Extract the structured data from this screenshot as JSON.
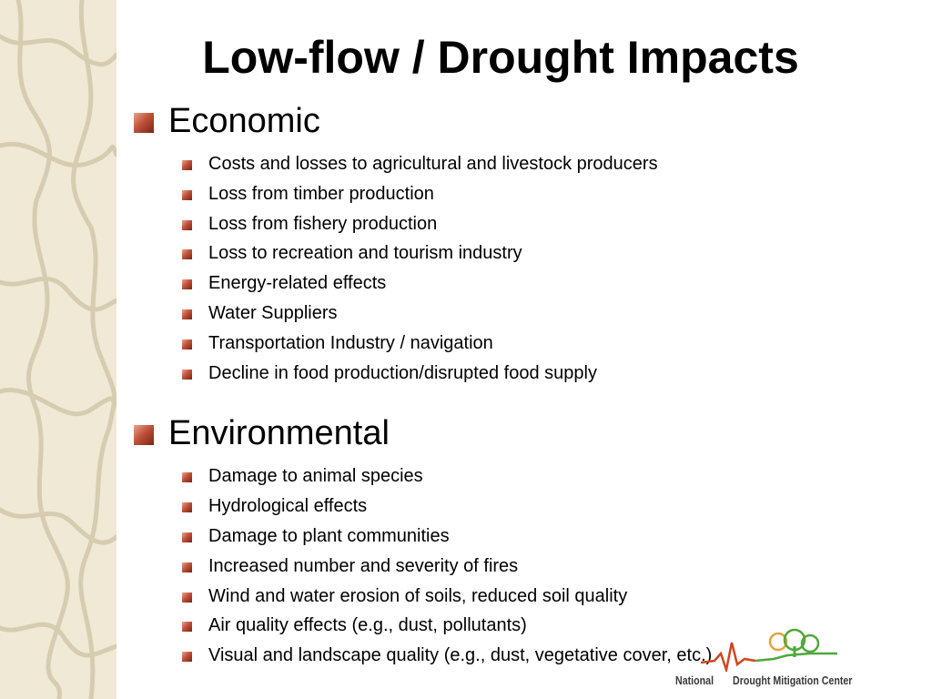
{
  "title": "Low-flow / Drought Impacts",
  "sections": [
    {
      "heading": "Economic",
      "items": [
        "Costs and losses to agricultural and livestock producers",
        "Loss from timber production",
        "Loss from fishery production",
        "Loss to recreation and tourism industry",
        "Energy-related effects",
        "Water Suppliers",
        "Transportation Industry / navigation",
        "Decline in food production/disrupted food supply"
      ]
    },
    {
      "heading": "Environmental",
      "items": [
        "Damage to animal species",
        "Hydrological effects",
        "Damage to plant communities",
        "Increased number and severity of fires",
        "Wind and water erosion of soils, reduced soil quality",
        "Air quality effects (e.g., dust, pollutants)",
        "Visual and landscape quality (e.g., dust, vegetative cover, etc.)"
      ]
    }
  ],
  "logo": {
    "left": "National",
    "right": "Drought Mitigation Center"
  }
}
